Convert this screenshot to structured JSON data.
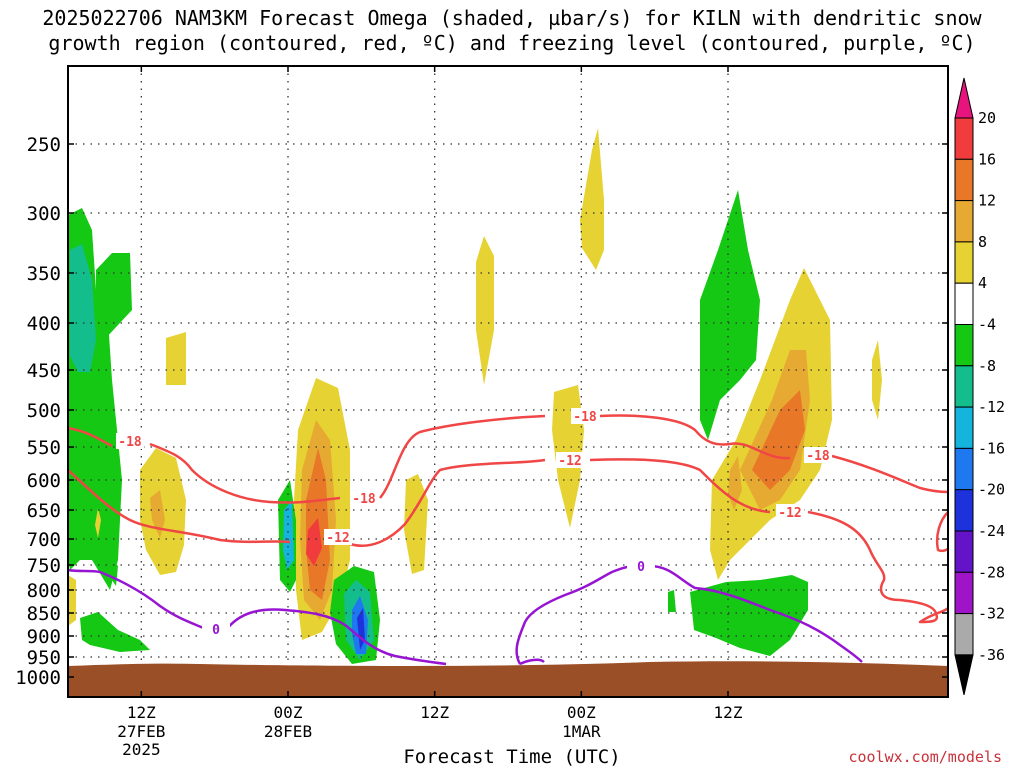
{
  "chart_data": {
    "type": "heatmap",
    "title_line1": "2025022706 NAM3KM Forecast Omega (shaded, µbar/s) for KILN with dendritic snow",
    "title_line2": "growth region (contoured, red, ºC) and freezing level (contoured, purple, ºC)",
    "xlabel": "Forecast Time (UTC)",
    "ylabel": "",
    "credit": "coolwx.com/models",
    "x_forecast_hours": [
      0,
      72
    ],
    "y_pressure_hpa": [
      1000,
      200
    ],
    "y_ticks": [
      "250",
      "300",
      "350",
      "400",
      "450",
      "500",
      "550",
      "600",
      "650",
      "700",
      "750",
      "800",
      "850",
      "900",
      "950",
      "1000"
    ],
    "x_ticks": [
      {
        "hour": 6,
        "l1": "12Z",
        "l2": "27FEB",
        "l3": "2025"
      },
      {
        "hour": 18,
        "l1": "00Z",
        "l2": "28FEB",
        "l3": ""
      },
      {
        "hour": 30,
        "l1": "12Z",
        "l2": "",
        "l3": ""
      },
      {
        "hour": 42,
        "l1": "00Z",
        "l2": "1MAR",
        "l3": ""
      },
      {
        "hour": 54,
        "l1": "12Z",
        "l2": "",
        "l3": ""
      }
    ],
    "grid": true,
    "colorbar": {
      "labels": [
        "20",
        "16",
        "12",
        "8",
        "4",
        "-4",
        "-8",
        "-12",
        "-16",
        "-20",
        "-24",
        "-28",
        "-32",
        "-36"
      ],
      "colors": [
        "#e6147c",
        "#f03c3c",
        "#e87828",
        "#e6aa32",
        "#e6d232",
        "#ffffff",
        "#14c814",
        "#14be8c",
        "#14b4dc",
        "#1e78f0",
        "#1e32dc",
        "#6414c8",
        "#a014c8",
        "#aaaaaa",
        "#000000"
      ]
    },
    "contour_labels": {
      "dgz": [
        "-18",
        "-18",
        "-18",
        "-18",
        "-12",
        "-12",
        "-12"
      ],
      "freezing": [
        "0",
        "0"
      ]
    },
    "ground_color": "#9b4f26"
  }
}
